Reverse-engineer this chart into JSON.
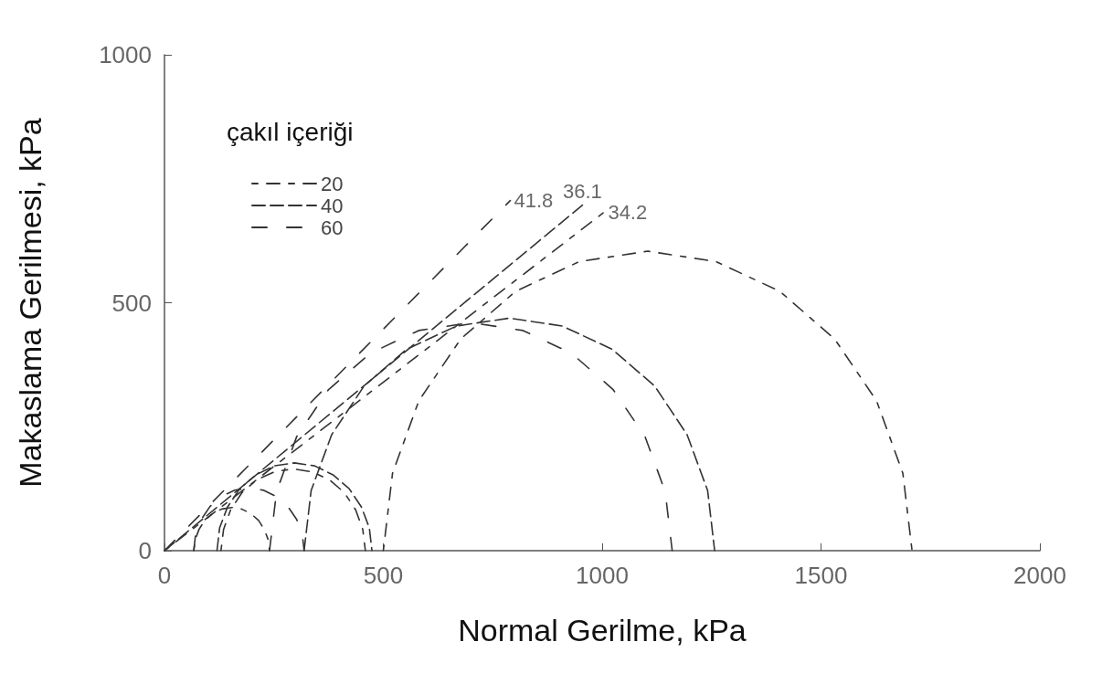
{
  "chart_data": {
    "type": "line",
    "xlabel": "Normal Gerilme, kPa",
    "ylabel": "Makaslama Gerilmesi, kPa",
    "legend_title": "çakıl içeriği",
    "legend": "top left",
    "grid": false,
    "marker": "none",
    "xlim": [
      0,
      2000
    ],
    "xticks": [
      0,
      500,
      1000,
      1500,
      2000
    ],
    "ylim": [
      0,
      1000
    ],
    "yticks": [
      0,
      500,
      1000
    ],
    "series": [
      {
        "name": "20",
        "color": "#333333",
        "line_style": "dashed",
        "x": [
          0,
          1005
        ],
        "values": [
          0,
          683
        ]
      },
      {
        "color": "#333333",
        "line_style": "dashed",
        "x": [
          67,
          70,
          79,
          92,
          110,
          131,
          154,
          176,
          197,
          215,
          228,
          237,
          240
        ],
        "values": [
          0,
          22,
          43,
          61,
          75,
          84,
          87,
          84,
          75,
          61,
          43,
          22,
          0
        ]
      },
      {
        "color": "#333333",
        "line_style": "dashed",
        "x": [
          129,
          135,
          151,
          177,
          211,
          251,
          294,
          337,
          377,
          411,
          437,
          453,
          459
        ],
        "values": [
          0,
          43,
          82,
          117,
          143,
          159,
          165,
          159,
          143,
          117,
          82,
          43,
          0
        ]
      },
      {
        "color": "#333333",
        "line_style": "dashed",
        "x": [
          500,
          521,
          581,
          677,
          802,
          948,
          1104,
          1260,
          1406,
          1531,
          1627,
          1687,
          1708
        ],
        "values": [
          0,
          156,
          302,
          427,
          523,
          583,
          604,
          583,
          523,
          427,
          302,
          156,
          0
        ]
      },
      {
        "name": "40",
        "color": "#333333",
        "line_style": "dashed",
        "x": [
          0,
          955
        ],
        "values": [
          0,
          697
        ]
      },
      {
        "color": "#333333",
        "line_style": "dashed",
        "x": [
          120,
          126,
          144,
          172,
          209,
          251,
          297,
          343,
          385,
          422,
          450,
          468,
          474
        ],
        "values": [
          0,
          46,
          88,
          125,
          153,
          171,
          177,
          171,
          153,
          125,
          88,
          46,
          0
        ]
      },
      {
        "color": "#333333",
        "line_style": "dashed",
        "x": [
          319,
          335,
          382,
          456,
          553,
          667,
          788,
          909,
          1023,
          1120,
          1194,
          1241,
          1257
        ],
        "values": [
          0,
          121,
          234,
          332,
          406,
          453,
          469,
          453,
          406,
          332,
          234,
          121,
          0
        ]
      },
      {
        "name": "60",
        "color": "#333333",
        "line_style": "dashed",
        "x": [
          0,
          790
        ],
        "values": [
          0,
          706
        ]
      },
      {
        "color": "#333333",
        "line_style": "dashed",
        "x": [
          67,
          71,
          84,
          104,
          130,
          160,
          193,
          226,
          256,
          282,
          302,
          315,
          319
        ],
        "values": [
          0,
          33,
          63,
          89,
          109,
          122,
          126,
          122,
          109,
          89,
          63,
          33,
          0
        ]
      },
      {
        "color": "#333333",
        "line_style": "dashed",
        "x": [
          240,
          256,
          302,
          375,
          470,
          581,
          700,
          819,
          930,
          1025,
          1098,
          1144,
          1160
        ],
        "values": [
          0,
          119,
          230,
          325,
          398,
          444,
          460,
          444,
          398,
          325,
          230,
          119,
          0
        ]
      }
    ],
    "annotations": [
      {
        "text": "41.8",
        "x": 790,
        "y": 706
      },
      {
        "text": "36.1",
        "x": 955,
        "y": 697
      },
      {
        "text": "34.2",
        "x": 1005,
        "y": 683
      }
    ]
  }
}
